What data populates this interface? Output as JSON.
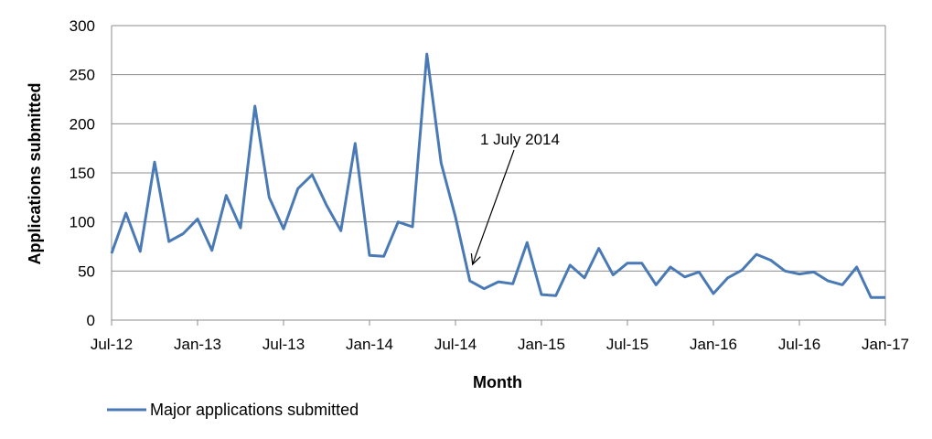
{
  "chart_data": {
    "type": "line",
    "title": "",
    "xlabel": "Month",
    "ylabel": "Applications submitted",
    "ylim": [
      0,
      300
    ],
    "y_ticks": [
      0,
      50,
      100,
      150,
      200,
      250,
      300
    ],
    "x_tick_labels": [
      "Jul-12",
      "Jan-13",
      "Jul-13",
      "Jan-14",
      "Jul-14",
      "Jan-15",
      "Jul-15",
      "Jan-16",
      "Jul-16",
      "Jan-17"
    ],
    "grid": "horizontal",
    "legend_position": "bottom-left",
    "series": [
      {
        "name": "Major applications submitted",
        "color": "#4a7ab5",
        "values": [
          68,
          109,
          70,
          161,
          80,
          88,
          103,
          71,
          127,
          94,
          218,
          125,
          93,
          134,
          148,
          117,
          91,
          180,
          66,
          65,
          100,
          95,
          271,
          160,
          105,
          40,
          32,
          39,
          37,
          79,
          26,
          25,
          56,
          43,
          73,
          46,
          58,
          58,
          36,
          54,
          44,
          49,
          27,
          43,
          51,
          67,
          61,
          50,
          47,
          49,
          40,
          36,
          54,
          23,
          23
        ]
      }
    ],
    "annotation": {
      "text": "1 July 2014",
      "target_index": 25
    }
  }
}
